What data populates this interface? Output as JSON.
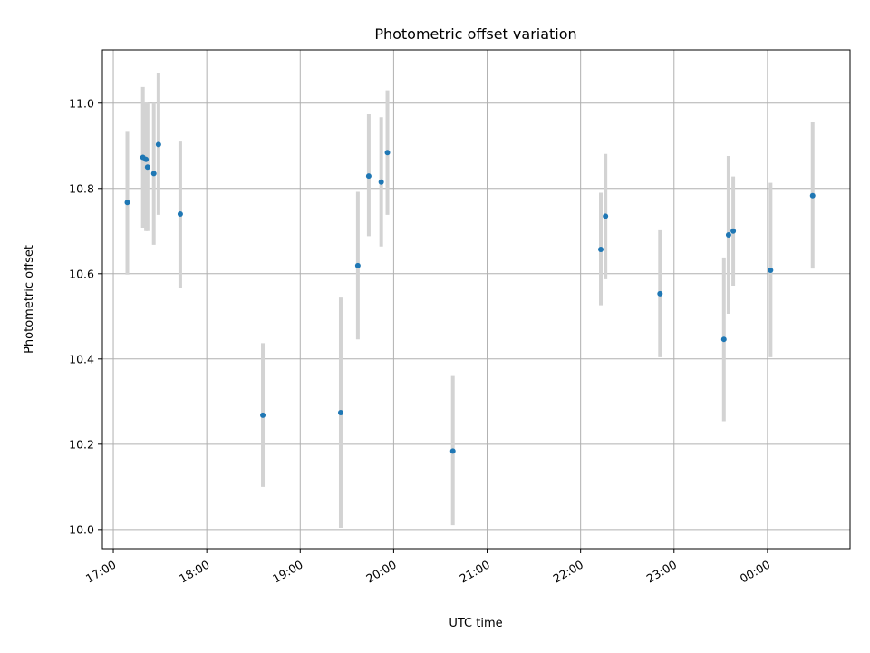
{
  "chart_data": {
    "type": "scatter",
    "title": "Photometric offset variation",
    "xlabel": "UTC time",
    "ylabel": "Photometric offset",
    "x_unit": "UTC date/time",
    "xlim": [
      "2023-01-01T16:53:00",
      "2023-01-02T00:53:00"
    ],
    "ylim": [
      9.955,
      11.125
    ],
    "x_ticks": [
      {
        "t": "2023-01-01T17:00",
        "label": "17:00"
      },
      {
        "t": "2023-01-01T18:00",
        "label": "18:00"
      },
      {
        "t": "2023-01-01T19:00",
        "label": "19:00"
      },
      {
        "t": "2023-01-01T20:00",
        "label": "20:00"
      },
      {
        "t": "2023-01-01T21:00",
        "label": "21:00"
      },
      {
        "t": "2023-01-01T22:00",
        "label": "22:00"
      },
      {
        "t": "2023-01-01T23:00",
        "label": "23:00"
      },
      {
        "t": "2023-01-02T00:00",
        "label": "00:00"
      }
    ],
    "y_ticks": [
      {
        "v": 10.0,
        "label": "10.0"
      },
      {
        "v": 10.2,
        "label": "10.2"
      },
      {
        "v": 10.4,
        "label": "10.4"
      },
      {
        "v": 10.6,
        "label": "10.6"
      },
      {
        "v": 10.8,
        "label": "10.8"
      },
      {
        "v": 11.0,
        "label": "11.0"
      }
    ],
    "grid": true,
    "point_color": "#1f77b4",
    "errorbar_color": "#d3d3d3",
    "points": [
      {
        "t": "2023-01-01T17:09",
        "y": 10.767,
        "lo": 10.598,
        "hi": 10.935
      },
      {
        "t": "2023-01-01T17:19",
        "y": 10.873,
        "lo": 10.708,
        "hi": 11.038
      },
      {
        "t": "2023-01-01T17:21",
        "y": 10.868,
        "lo": 10.7,
        "hi": 11.003
      },
      {
        "t": "2023-01-01T17:22",
        "y": 10.85,
        "lo": 10.7,
        "hi": 11.0
      },
      {
        "t": "2023-01-01T17:26",
        "y": 10.835,
        "lo": 10.668,
        "hi": 11.0
      },
      {
        "t": "2023-01-01T17:29",
        "y": 10.903,
        "lo": 10.738,
        "hi": 11.071
      },
      {
        "t": "2023-01-01T17:43",
        "y": 10.74,
        "lo": 10.566,
        "hi": 10.91
      },
      {
        "t": "2023-01-01T18:36",
        "y": 10.268,
        "lo": 10.1,
        "hi": 10.437
      },
      {
        "t": "2023-01-01T19:26",
        "y": 10.274,
        "lo": 10.004,
        "hi": 10.544
      },
      {
        "t": "2023-01-01T19:37",
        "y": 10.619,
        "lo": 10.446,
        "hi": 10.792
      },
      {
        "t": "2023-01-01T19:44",
        "y": 10.829,
        "lo": 10.688,
        "hi": 10.974
      },
      {
        "t": "2023-01-01T19:52",
        "y": 10.815,
        "lo": 10.664,
        "hi": 10.967
      },
      {
        "t": "2023-01-01T19:56",
        "y": 10.884,
        "lo": 10.738,
        "hi": 11.03
      },
      {
        "t": "2023-01-01T20:38",
        "y": 10.184,
        "lo": 10.01,
        "hi": 10.36
      },
      {
        "t": "2023-01-01T22:13",
        "y": 10.657,
        "lo": 10.526,
        "hi": 10.79
      },
      {
        "t": "2023-01-01T22:16",
        "y": 10.735,
        "lo": 10.587,
        "hi": 10.881
      },
      {
        "t": "2023-01-01T22:51",
        "y": 10.553,
        "lo": 10.404,
        "hi": 10.702
      },
      {
        "t": "2023-01-01T23:32",
        "y": 10.446,
        "lo": 10.254,
        "hi": 10.638
      },
      {
        "t": "2023-01-01T23:35",
        "y": 10.691,
        "lo": 10.506,
        "hi": 10.876
      },
      {
        "t": "2023-01-01T23:38",
        "y": 10.7,
        "lo": 10.572,
        "hi": 10.828
      },
      {
        "t": "2023-01-02T00:02",
        "y": 10.608,
        "lo": 10.404,
        "hi": 10.813
      },
      {
        "t": "2023-01-02T00:29",
        "y": 10.783,
        "lo": 10.612,
        "hi": 10.955
      }
    ]
  }
}
